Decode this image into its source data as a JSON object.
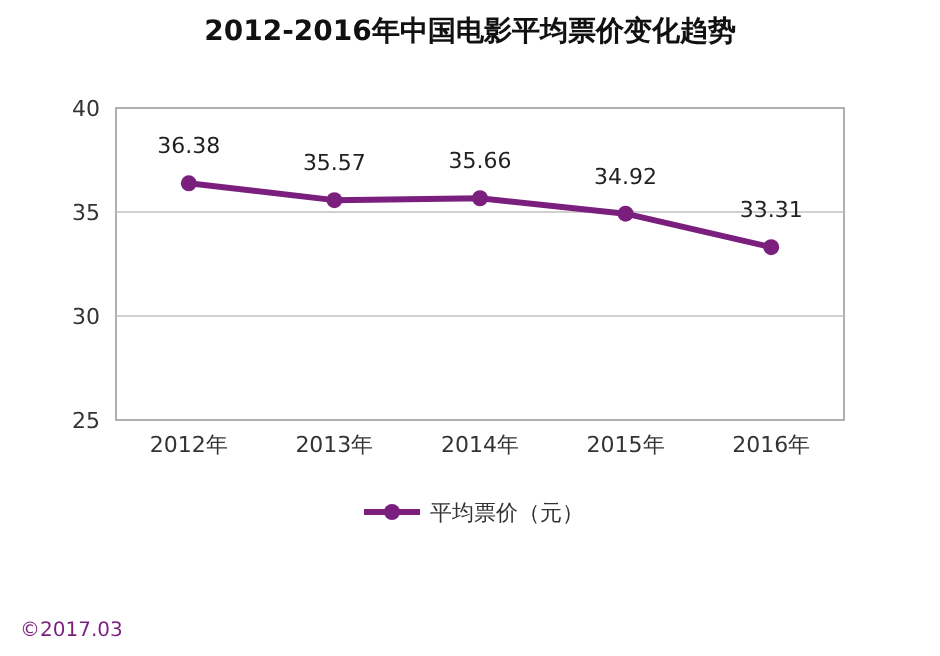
{
  "chart_data": {
    "type": "line",
    "title": "2012-2016年中国电影平均票价变化趋势",
    "categories": [
      "2012年",
      "2013年",
      "2014年",
      "2015年",
      "2016年"
    ],
    "series": [
      {
        "name": "平均票价（元）",
        "color": "#7b1f7f",
        "values": [
          36.38,
          35.57,
          35.66,
          34.92,
          33.31
        ]
      }
    ],
    "ylim": [
      25,
      40
    ],
    "yticks": [
      25,
      30,
      35,
      40
    ],
    "grid": "y",
    "legend": "bottom",
    "marker": "circle",
    "data_labels": true,
    "annotations": [
      "©2017.03"
    ]
  }
}
